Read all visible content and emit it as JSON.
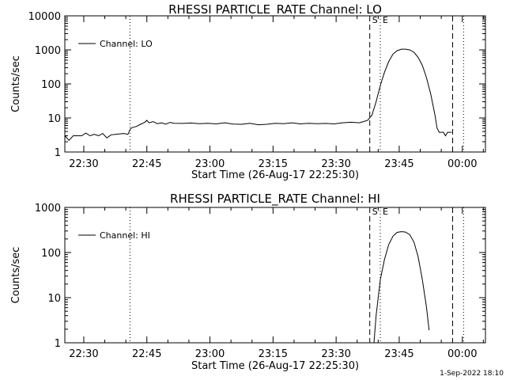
{
  "chart_data": [
    {
      "type": "line",
      "title": "RHESSI PARTICLE_RATE Channel: LO",
      "xlabel": "Start Time (26-Aug-17 22:25:30)",
      "ylabel": "Counts/sec",
      "yscale": "log",
      "ylim": [
        1,
        10000
      ],
      "xlim_minutes": [
        0,
        100
      ],
      "x_ticks": [
        {
          "m": 4.5,
          "label": "22:30"
        },
        {
          "m": 19.5,
          "label": "22:45"
        },
        {
          "m": 34.5,
          "label": "23:00"
        },
        {
          "m": 49.5,
          "label": "23:15"
        },
        {
          "m": 64.5,
          "label": "23:30"
        },
        {
          "m": 79.5,
          "label": "23:45"
        },
        {
          "m": 94.5,
          "label": "00:00"
        }
      ],
      "y_ticks": [
        {
          "v": 1,
          "label": "1"
        },
        {
          "v": 10,
          "label": "10"
        },
        {
          "v": 100,
          "label": "100"
        },
        {
          "v": 1000,
          "label": "1000"
        },
        {
          "v": 10000,
          "label": "10000"
        }
      ],
      "legend": {
        "position": "top-left",
        "entry": "Channel: LO"
      },
      "markers": [
        {
          "m": 15.5,
          "style": "dotted"
        },
        {
          "m": 72.5,
          "style": "dashed",
          "label": "S"
        },
        {
          "m": 75.0,
          "style": "dotted",
          "label": "E"
        },
        {
          "m": 92.2,
          "style": "dashed"
        },
        {
          "m": 94.8,
          "style": "dotted"
        }
      ],
      "series": [
        {
          "name": "Channel: LO",
          "points": [
            [
              0,
              3
            ],
            [
              1,
              2.2
            ],
            [
              2,
              3
            ],
            [
              4,
              3
            ],
            [
              5,
              3.6
            ],
            [
              6,
              3
            ],
            [
              7,
              3.3
            ],
            [
              8,
              3
            ],
            [
              9,
              3.5
            ],
            [
              10,
              2.6
            ],
            [
              11,
              3.2
            ],
            [
              12,
              3.3
            ],
            [
              13,
              3.4
            ],
            [
              14,
              3.5
            ],
            [
              15,
              3.3
            ],
            [
              15.6,
              4.8
            ],
            [
              16,
              5.2
            ],
            [
              17,
              5.6
            ],
            [
              18,
              6.5
            ],
            [
              19,
              7.5
            ],
            [
              19.5,
              8.5
            ],
            [
              20,
              7.2
            ],
            [
              21,
              7.8
            ],
            [
              22,
              6.8
            ],
            [
              23,
              7.2
            ],
            [
              24,
              6.6
            ],
            [
              25,
              7.4
            ],
            [
              26,
              7.0
            ],
            [
              28,
              6.9
            ],
            [
              30,
              7.1
            ],
            [
              32,
              6.8
            ],
            [
              34,
              7.0
            ],
            [
              36,
              6.7
            ],
            [
              38,
              7.2
            ],
            [
              40,
              6.6
            ],
            [
              42,
              6.5
            ],
            [
              44,
              7.0
            ],
            [
              46,
              6.3
            ],
            [
              48,
              6.5
            ],
            [
              50,
              7.0
            ],
            [
              52,
              6.8
            ],
            [
              54,
              7.2
            ],
            [
              56,
              6.7
            ],
            [
              58,
              7.0
            ],
            [
              60,
              6.8
            ],
            [
              62,
              6.9
            ],
            [
              64,
              6.7
            ],
            [
              66,
              7.2
            ],
            [
              68,
              7.5
            ],
            [
              70,
              7.2
            ],
            [
              71,
              7.8
            ],
            [
              72,
              8.5
            ],
            [
              73,
              12
            ],
            [
              74,
              30
            ],
            [
              75,
              90
            ],
            [
              76,
              220
            ],
            [
              77,
              450
            ],
            [
              78,
              750
            ],
            [
              79,
              950
            ],
            [
              80,
              1050
            ],
            [
              81,
              1050
            ],
            [
              82,
              1000
            ],
            [
              83,
              850
            ],
            [
              84,
              600
            ],
            [
              85,
              350
            ],
            [
              86,
              150
            ],
            [
              87,
              50
            ],
            [
              88,
              12
            ],
            [
              88.5,
              5
            ],
            [
              89,
              3.8
            ],
            [
              90,
              3.8
            ],
            [
              90.5,
              3.0
            ],
            [
              91,
              3.8
            ],
            [
              92,
              3.8
            ]
          ]
        }
      ]
    },
    {
      "type": "line",
      "title": "RHESSI PARTICLE_RATE Channel: HI",
      "xlabel": "Start Time (26-Aug-17 22:25:30)",
      "ylabel": "Counts/sec",
      "yscale": "log",
      "ylim": [
        1,
        1000
      ],
      "xlim_minutes": [
        0,
        100
      ],
      "x_ticks": [
        {
          "m": 4.5,
          "label": "22:30"
        },
        {
          "m": 19.5,
          "label": "22:45"
        },
        {
          "m": 34.5,
          "label": "23:00"
        },
        {
          "m": 49.5,
          "label": "23:15"
        },
        {
          "m": 64.5,
          "label": "23:30"
        },
        {
          "m": 79.5,
          "label": "23:45"
        },
        {
          "m": 94.5,
          "label": "00:00"
        }
      ],
      "y_ticks": [
        {
          "v": 1,
          "label": "1"
        },
        {
          "v": 10,
          "label": "10"
        },
        {
          "v": 100,
          "label": "100"
        },
        {
          "v": 1000,
          "label": "1000"
        }
      ],
      "legend": {
        "position": "top-left",
        "entry": "Channel: HI"
      },
      "markers": [
        {
          "m": 15.5,
          "style": "dotted"
        },
        {
          "m": 72.5,
          "style": "dashed",
          "label": "S"
        },
        {
          "m": 75.0,
          "style": "dotted",
          "label": "E"
        },
        {
          "m": 92.2,
          "style": "dashed"
        },
        {
          "m": 94.8,
          "style": "dotted"
        }
      ],
      "series": [
        {
          "name": "Channel: HI",
          "points": [
            [
              73.5,
              1
            ],
            [
              74,
              4
            ],
            [
              75,
              25
            ],
            [
              76,
              70
            ],
            [
              77,
              150
            ],
            [
              78,
              230
            ],
            [
              79,
              280
            ],
            [
              80,
              290
            ],
            [
              81,
              285
            ],
            [
              82,
              250
            ],
            [
              83,
              170
            ],
            [
              84,
              80
            ],
            [
              85,
              25
            ],
            [
              86,
              6
            ],
            [
              86.6,
              1.9
            ]
          ]
        }
      ]
    }
  ],
  "footer": {
    "timestamp": "1-Sep-2022 18:10"
  }
}
